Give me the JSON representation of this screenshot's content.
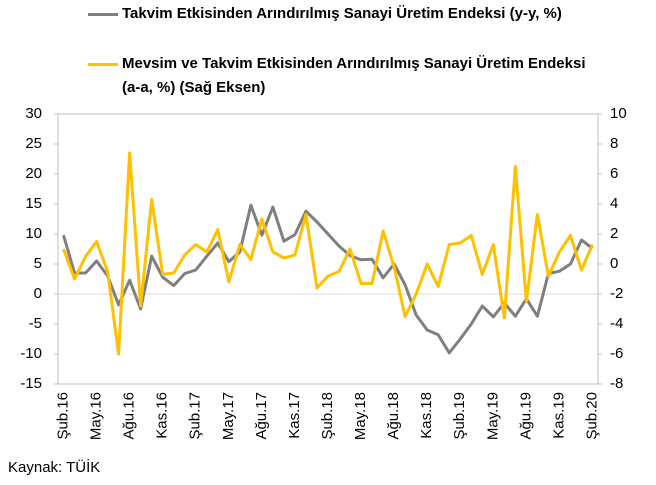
{
  "chart_data": {
    "type": "line",
    "categories": [
      "Şub.16",
      null,
      null,
      "May.16",
      null,
      null,
      "Ağu.16",
      null,
      null,
      "Kas.16",
      null,
      null,
      "Şub.17",
      null,
      null,
      "May.17",
      null,
      null,
      "Ağu.17",
      null,
      null,
      "Kas.17",
      null,
      null,
      "Şub.18",
      null,
      null,
      "May.18",
      null,
      null,
      "Ağu.18",
      null,
      null,
      "Kas.18",
      null,
      null,
      "Şub.19",
      null,
      null,
      "May.19",
      null,
      null,
      "Ağu.19",
      null,
      null,
      "Kas.19",
      null,
      null,
      "Şub.20"
    ],
    "series": [
      {
        "name": "Takvim Etkisinden Arındırılmış Sanayi Üretim Endeksi (y-y, %)",
        "color": "#7f7f7f",
        "values": [
          9.8,
          3.5,
          3.5,
          5.5,
          3.0,
          -1.8,
          2.3,
          -2.5,
          6.3,
          2.8,
          1.4,
          3.4,
          4.0,
          6.3,
          8.5,
          5.4,
          7.0,
          14.8,
          9.8,
          14.5,
          8.8,
          9.9,
          13.8,
          12.0,
          10.0,
          8.0,
          6.4,
          5.7,
          5.8,
          2.7,
          5.0,
          1.5,
          -3.5,
          -6.0,
          -6.8,
          -9.8,
          -7.5,
          -5.0,
          -2.0,
          -3.8,
          -1.5,
          -3.7,
          -0.8,
          -3.7,
          3.4,
          3.8,
          5.0,
          9.0,
          7.6
        ]
      },
      {
        "name": "Mevsim ve Takvim Etkisinden Arındırılmış Sanayi Üretim Endeksi (a-a, %) (Sağ Eksen)",
        "color": "#ffc000",
        "axis": "y2",
        "values": [
          1.0,
          -1.0,
          0.5,
          1.5,
          -0.5,
          -6.0,
          7.4,
          -2.8,
          4.3,
          -0.7,
          -0.6,
          0.6,
          1.3,
          0.8,
          2.3,
          -1.2,
          1.3,
          0.3,
          3.0,
          0.8,
          0.4,
          0.6,
          3.3,
          -1.6,
          -0.8,
          -0.5,
          1.0,
          -1.3,
          -1.3,
          2.2,
          -0.2,
          -3.5,
          -2.0,
          0.0,
          -1.5,
          1.3,
          1.4,
          1.9,
          -0.7,
          1.3,
          -3.6,
          6.5,
          -2.5,
          3.3,
          -0.8,
          0.8,
          1.9,
          -0.4,
          1.3
        ]
      }
    ],
    "ylim": [
      -15,
      30
    ],
    "yticks": [
      -15,
      -10,
      -5,
      0,
      5,
      10,
      15,
      20,
      25,
      30
    ],
    "y2lim": [
      -8,
      10
    ],
    "y2ticks": [
      -8,
      -6,
      -4,
      -2,
      0,
      2,
      4,
      6,
      8,
      10
    ],
    "source": "Kaynak: TÜİK"
  }
}
